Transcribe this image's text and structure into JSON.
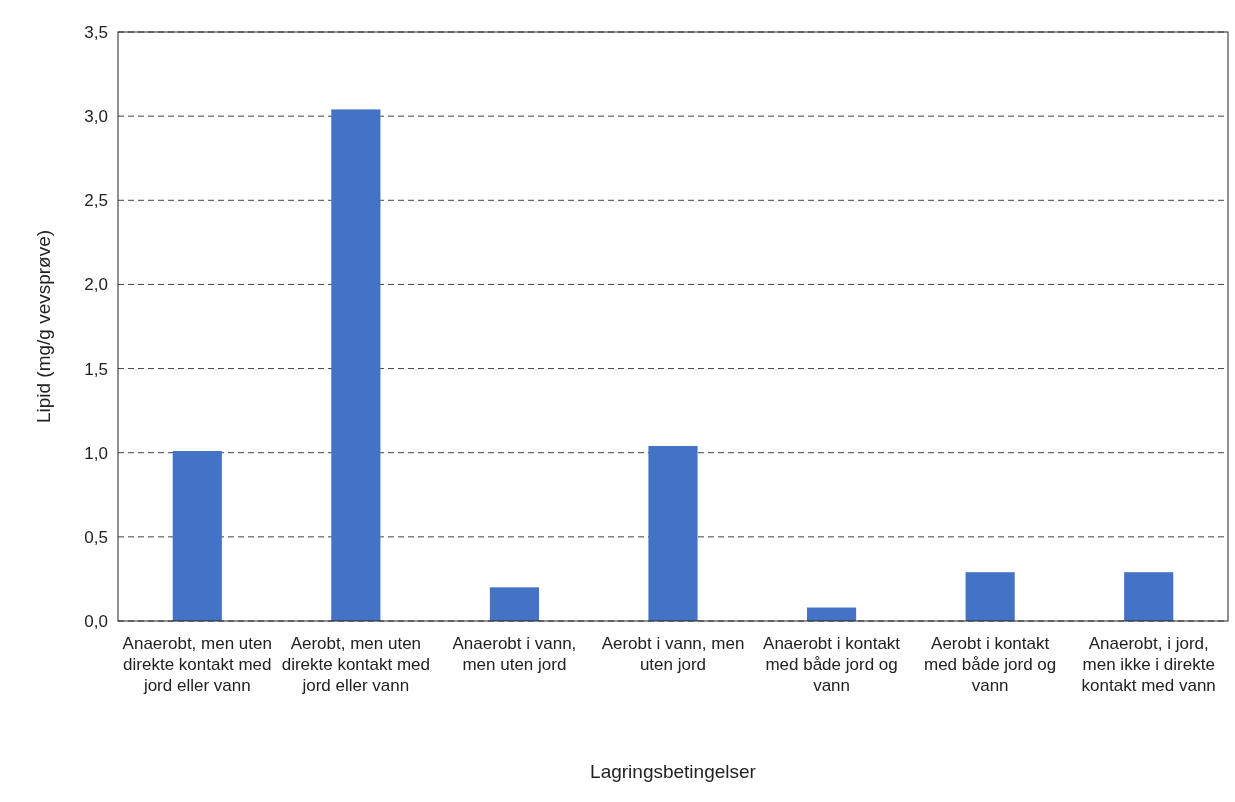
{
  "chart_data": {
    "type": "bar",
    "xlabel": "Lagringsbetingelser",
    "ylabel": "Lipid (mg/g vevsprøve)",
    "categories": [
      "Anaerobt, men uten direkte kontakt med jord eller vann",
      "Aerobt, men uten direkte kontakt med jord eller vann",
      "Anaerobt i vann, men uten jord",
      "Aerobt i vann, men uten jord",
      "Anaerobt i kontakt med både jord og vann",
      "Aerobt i kontakt med både jord og vann",
      "Anaerobt, i jord, men ikke i direkte kontakt med vann"
    ],
    "values": [
      1.01,
      3.04,
      0.2,
      1.04,
      0.08,
      0.29,
      0.29
    ],
    "color": "#4472c4",
    "ylim": [
      0,
      3.5
    ],
    "yticks": [
      {
        "value": 0,
        "label": "0,0"
      },
      {
        "value": 0.5,
        "label": "0,5"
      },
      {
        "value": 1,
        "label": "1,0"
      },
      {
        "value": 1.5,
        "label": "1,5"
      },
      {
        "value": 2,
        "label": "2,0"
      },
      {
        "value": 2.5,
        "label": "2,5"
      },
      {
        "value": 3,
        "label": "3,0"
      },
      {
        "value": 3.5,
        "label": "3,5"
      }
    ],
    "grid": "y",
    "line_style": "dashed"
  }
}
